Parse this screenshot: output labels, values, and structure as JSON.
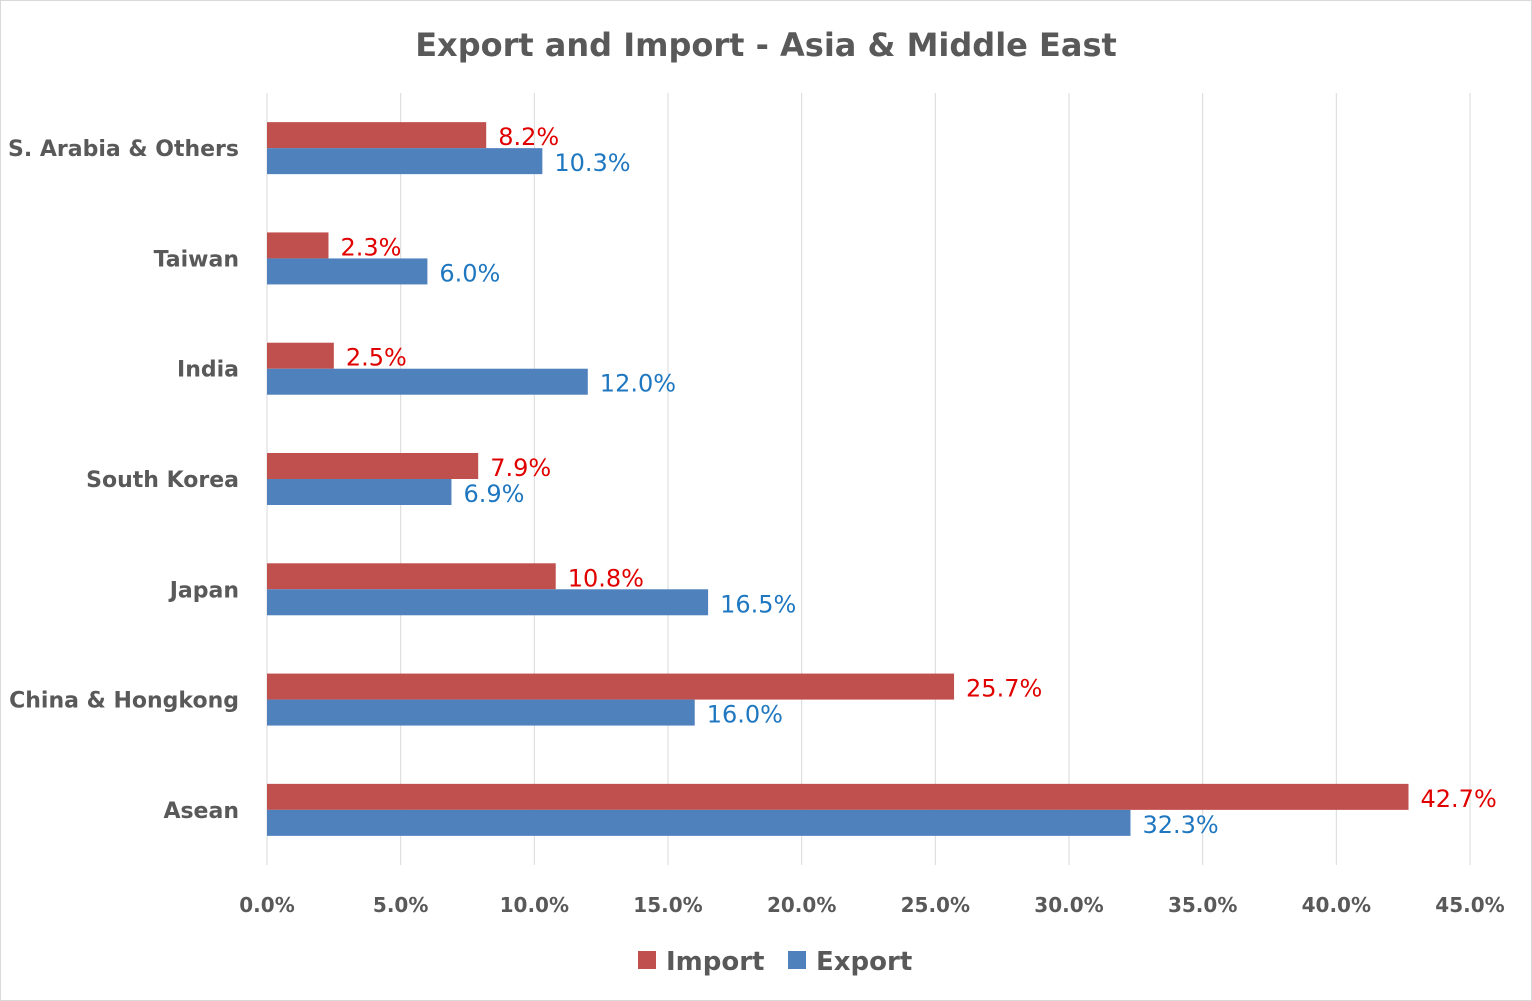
{
  "chart_data": {
    "type": "bar",
    "orientation": "horizontal",
    "title": "Export and Import - Asia & Middle East",
    "categories": [
      "S. Arabia & Others",
      "Taiwan",
      "India",
      "South Korea",
      "Japan",
      "China & Hongkong",
      "Asean"
    ],
    "series": [
      {
        "name": "Import",
        "color": "#C0504D",
        "label_color": "#E00000",
        "values": [
          8.2,
          2.3,
          2.5,
          7.9,
          10.8,
          25.7,
          42.7
        ],
        "labels": [
          "8.2%",
          "2.3%",
          "2.5%",
          "7.9%",
          "10.8%",
          "25.7%",
          "42.7%"
        ]
      },
      {
        "name": "Export",
        "color": "#4F81BD",
        "label_color": "#1F77C0",
        "values": [
          10.3,
          6.0,
          12.0,
          6.9,
          16.5,
          16.0,
          32.3
        ],
        "labels": [
          "10.3%",
          "6.0%",
          "12.0%",
          "6.9%",
          "16.5%",
          "16.0%",
          "32.3%"
        ]
      }
    ],
    "xlim": [
      0,
      45
    ],
    "xticks": [
      0,
      5,
      10,
      15,
      20,
      25,
      30,
      35,
      40,
      45
    ],
    "xtick_labels": [
      "0.0%",
      "5.0%",
      "10.0%",
      "15.0%",
      "20.0%",
      "25.0%",
      "30.0%",
      "35.0%",
      "40.0%",
      "45.0%"
    ],
    "grid": true,
    "legend_position": "bottom"
  }
}
